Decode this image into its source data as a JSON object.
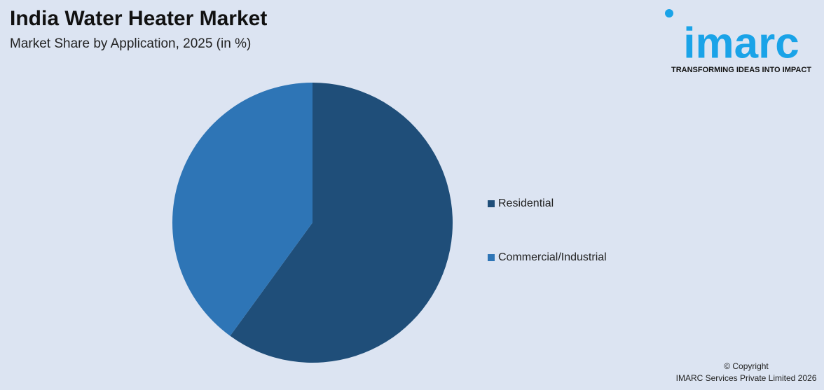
{
  "chart_data": {
    "type": "pie",
    "title": "India Water Heater Market",
    "subtitle": "Market Share by Application, 2025 (in %)",
    "categories": [
      "Residential",
      "Commercial/Industrial"
    ],
    "values": [
      60,
      40
    ],
    "colors": [
      "#1f4e79",
      "#2e75b6"
    ],
    "legend_position": "right"
  },
  "logo": {
    "name": "imarc",
    "tagline": "TRANSFORMING IDEAS INTO IMPACT"
  },
  "footer": {
    "copyright": "© Copyright",
    "company": "IMARC Services Private Limited 2026"
  }
}
